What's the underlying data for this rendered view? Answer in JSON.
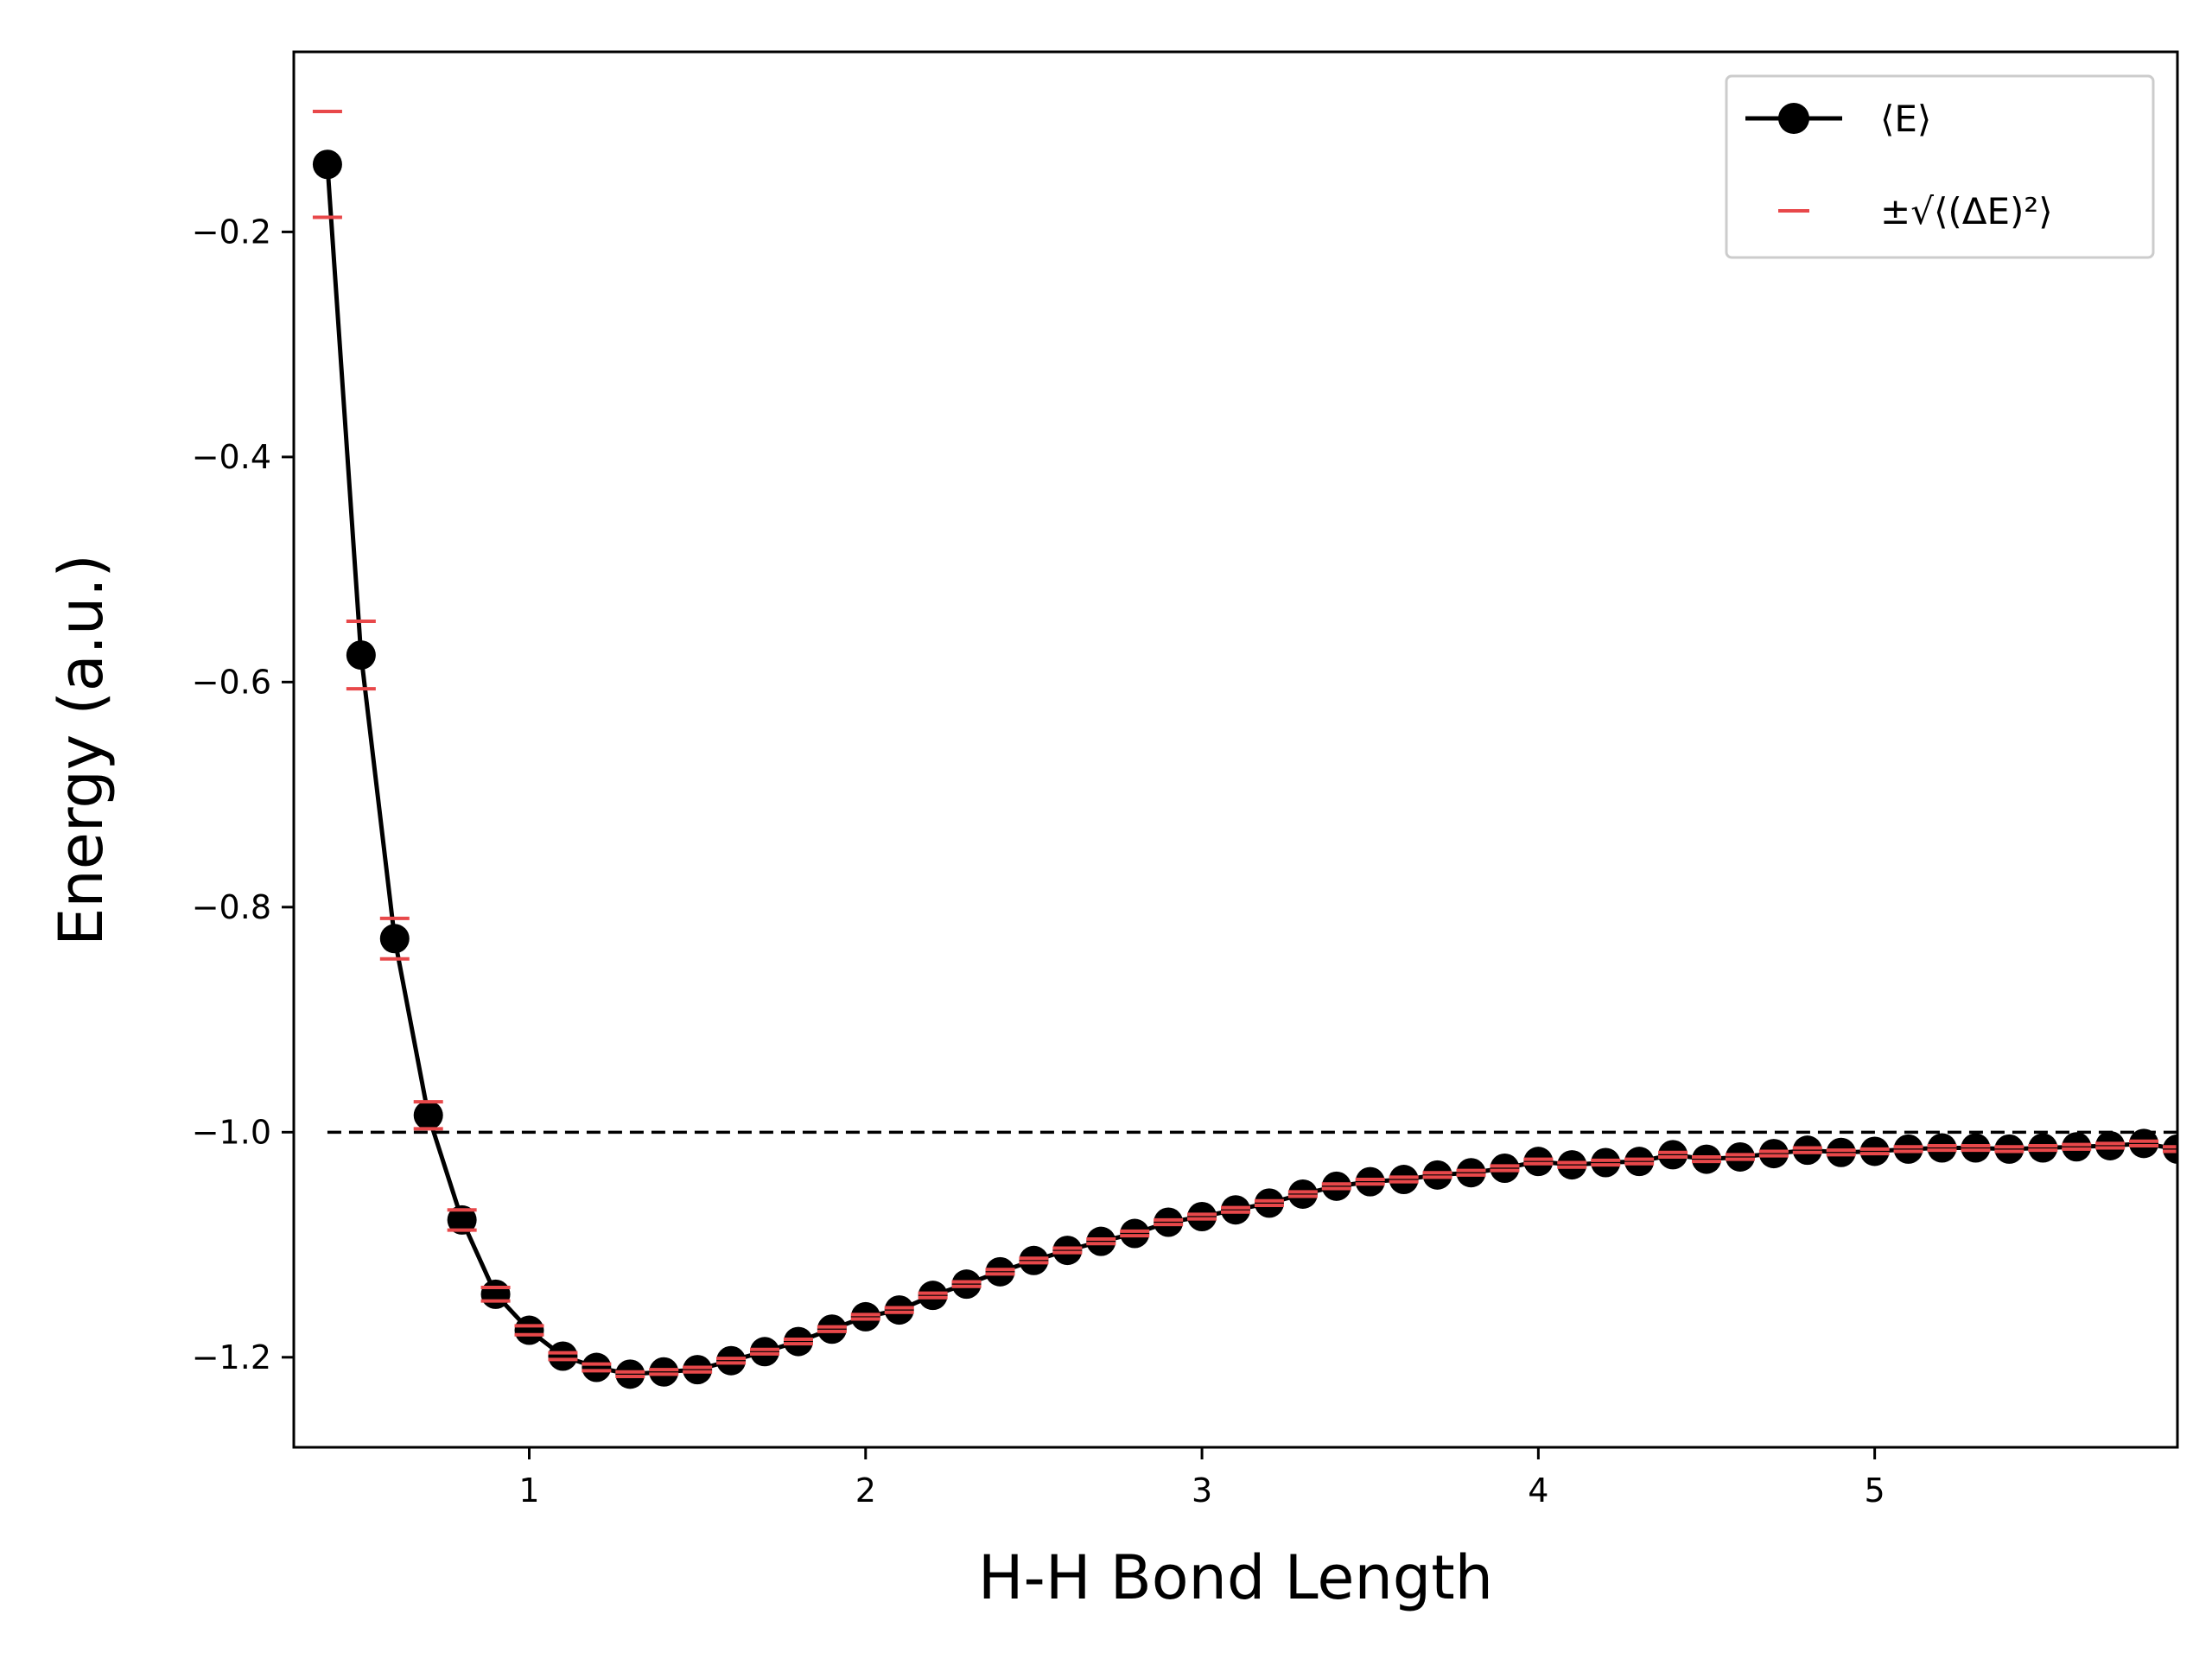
{
  "chart_data": {
    "type": "line",
    "title": "",
    "xlabel": "H-H Bond Length",
    "ylabel": "Energy (a.u.)",
    "xlim": [
      0.3,
      5.9
    ],
    "ylim": [
      -1.28,
      -0.04
    ],
    "xticks": [
      1,
      2,
      3,
      4,
      5
    ],
    "xtick_labels": [
      "1",
      "2",
      "3",
      "4",
      "5"
    ],
    "yticks": [
      -1.2,
      -1.0,
      -0.8,
      -0.6,
      -0.4,
      -0.2
    ],
    "ytick_labels": [
      "−1.2",
      "−1.0",
      "−0.8",
      "−0.6",
      "−0.4",
      "−0.2"
    ],
    "grid": false,
    "legend_position": "top-right",
    "reference_line": {
      "y": -1.0,
      "style": "dashed",
      "color": "#000000"
    },
    "series": [
      {
        "name": "⟨E⟩",
        "color": "#000000",
        "marker": "circle",
        "error_color": "#e8484a",
        "x": [
          0.4,
          0.5,
          0.6,
          0.7,
          0.8,
          0.9,
          1.0,
          1.1,
          1.2,
          1.3,
          1.4,
          1.5,
          1.6,
          1.7,
          1.8,
          1.9,
          2.0,
          2.1,
          2.2,
          2.3,
          2.4,
          2.5,
          2.6,
          2.7,
          2.8,
          2.9,
          3.0,
          3.1,
          3.2,
          3.3,
          3.4,
          3.5,
          3.6,
          3.7,
          3.8,
          3.9,
          4.0,
          4.1,
          4.2,
          4.3,
          4.4,
          4.5,
          4.6,
          4.7,
          4.8,
          4.9,
          5.0,
          5.1,
          5.2,
          5.3,
          5.4,
          5.5,
          5.6,
          5.7,
          5.8,
          5.9
        ],
        "y": [
          -0.14,
          -0.576,
          -0.828,
          -0.985,
          -1.078,
          -1.144,
          -1.176,
          -1.199,
          -1.209,
          -1.215,
          -1.213,
          -1.211,
          -1.203,
          -1.195,
          -1.186,
          -1.175,
          -1.164,
          -1.158,
          -1.145,
          -1.135,
          -1.124,
          -1.114,
          -1.105,
          -1.097,
          -1.09,
          -1.08,
          -1.075,
          -1.069,
          -1.063,
          -1.055,
          -1.048,
          -1.044,
          -1.042,
          -1.038,
          -1.036,
          -1.032,
          -1.026,
          -1.029,
          -1.027,
          -1.026,
          -1.02,
          -1.024,
          -1.022,
          -1.019,
          -1.016,
          -1.018,
          -1.017,
          -1.015,
          -1.014,
          -1.014,
          -1.015,
          -1.014,
          -1.013,
          -1.012,
          -1.01,
          -1.015
        ],
        "error": [
          0.047,
          0.03,
          0.018,
          0.012,
          0.009,
          0.006,
          0.004,
          0.003,
          0.003,
          0.002,
          0.002,
          0.002,
          0.002,
          0.002,
          0.002,
          0.002,
          0.002,
          0.002,
          0.002,
          0.002,
          0.002,
          0.002,
          0.002,
          0.002,
          0.002,
          0.002,
          0.002,
          0.002,
          0.002,
          0.002,
          0.002,
          0.002,
          0.002,
          0.002,
          0.002,
          0.002,
          0.002,
          0.002,
          0.002,
          0.002,
          0.002,
          0.002,
          0.002,
          0.002,
          0.002,
          0.002,
          0.002,
          0.002,
          0.002,
          0.002,
          0.002,
          0.002,
          0.002,
          0.002,
          0.002,
          0.002
        ]
      }
    ],
    "legend": [
      {
        "label": "⟨E⟩",
        "kind": "line-marker"
      },
      {
        "label": "±√⟨(ΔE)²⟩",
        "kind": "error-bar"
      }
    ]
  }
}
